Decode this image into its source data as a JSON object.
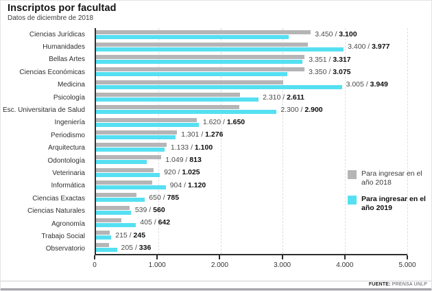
{
  "header": {
    "title": "Inscriptos por facultad",
    "subtitle": "Datos de diciembre de 2018"
  },
  "legend": {
    "item_2018": "Para ingresar en el año 2018",
    "item_2019": "Para ingresar en el año 2019"
  },
  "footer": {
    "source_label": "FUENTE:",
    "source_value": "PRENSA UNLP"
  },
  "colors": {
    "bar_2018": "#b5b5b7",
    "bar_2019": "#55e0f2",
    "axis": "#2c2c30",
    "grid": "#dcdce0"
  },
  "chart_data": {
    "type": "bar",
    "orientation": "horizontal",
    "title": "Inscriptos por facultad",
    "subtitle": "Datos de diciembre de 2018",
    "xlabel": "",
    "ylabel": "",
    "xlim": [
      0,
      5000
    ],
    "x_ticks": [
      "0",
      "1.000",
      "2.000",
      "3.000",
      "4.000",
      "5.000"
    ],
    "grid": "dashed-vertical",
    "legend_position": "right-middle",
    "value_separator": " / ",
    "categories": [
      "Ciencias Jurídicas",
      "Humanidades",
      "Bellas Artes",
      "Ciencias Económicas",
      "Medicina",
      "Psicología",
      "Esc. Universitaria de Salud",
      "Ingeniería",
      "Periodismo",
      "Arquitectura",
      "Odontología",
      "Veterinaria",
      "Informática",
      "Ciencias Exactas",
      "Ciencias Naturales",
      "Agronomía",
      "Trabajo Social",
      "Observatorio"
    ],
    "series": [
      {
        "name": "Para ingresar en el año 2018",
        "color": "#b5b5b7",
        "values": [
          3450,
          3400,
          3351,
          3350,
          3005,
          2310,
          2300,
          1620,
          1301,
          1133,
          1049,
          920,
          904,
          650,
          539,
          405,
          215,
          205
        ],
        "value_labels": [
          "3.450",
          "3.400",
          "3.351",
          "3.350",
          "3.005",
          "2.310",
          "2.300",
          "1.620",
          "1.301",
          "1.133",
          "1.049",
          "920",
          "904",
          "650",
          "539",
          "405",
          "215",
          "205"
        ]
      },
      {
        "name": "Para ingresar en el año 2019",
        "color": "#55e0f2",
        "values": [
          3100,
          3977,
          3317,
          3075,
          3949,
          2611,
          2900,
          1650,
          1276,
          1100,
          813,
          1025,
          1120,
          785,
          560,
          642,
          245,
          336
        ],
        "value_labels": [
          "3.100",
          "3.977",
          "3.317",
          "3.075",
          "3.949",
          "2.611",
          "2.900",
          "1.650",
          "1.276",
          "1.100",
          "813",
          "1.025",
          "1.120",
          "785",
          "560",
          "642",
          "245",
          "336"
        ]
      }
    ]
  }
}
